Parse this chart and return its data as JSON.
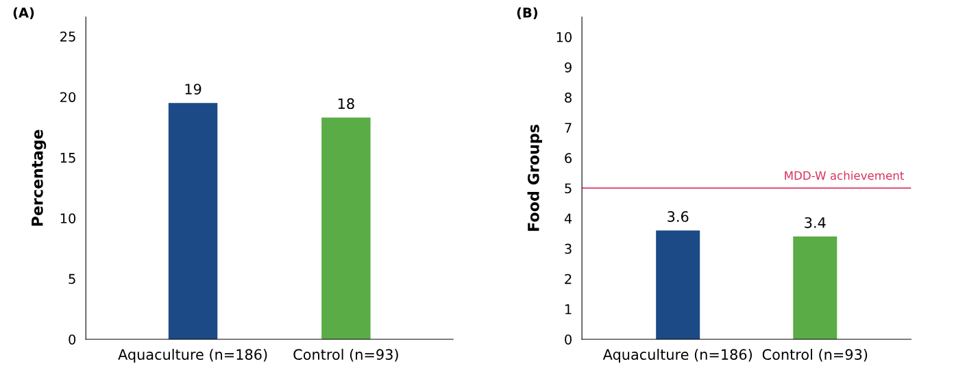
{
  "chart_data": [
    {
      "type": "bar",
      "title": "(A)",
      "ylabel": "Percentage",
      "categories": [
        "Aquaculture (n=186)",
        "Control (n=93)"
      ],
      "values": [
        19.5,
        18.3
      ],
      "colors": [
        "#1c4a86",
        "#5aac46"
      ],
      "value_labels": [
        "19",
        "18"
      ],
      "ylim": [
        0,
        26.6
      ],
      "yticks": [
        0,
        5,
        10,
        15,
        20,
        25
      ],
      "grid": false,
      "legend": false
    },
    {
      "type": "bar",
      "title": "(B)",
      "ylabel": "Food Groups",
      "categories": [
        "Aquaculture (n=186)",
        "Control (n=93)"
      ],
      "values": [
        3.6,
        3.4
      ],
      "colors": [
        "#1c4a86",
        "#5aac46"
      ],
      "data_labels": true,
      "ylim": [
        0,
        10.66
      ],
      "yticks": [
        0,
        1,
        2,
        3,
        4,
        5,
        6,
        7,
        8,
        9,
        10
      ],
      "grid": false,
      "legend": false,
      "ref_lines": [
        {
          "axis": "y",
          "value": 5,
          "label": "MDD-W achievement",
          "color": "#d9305c"
        }
      ]
    }
  ]
}
